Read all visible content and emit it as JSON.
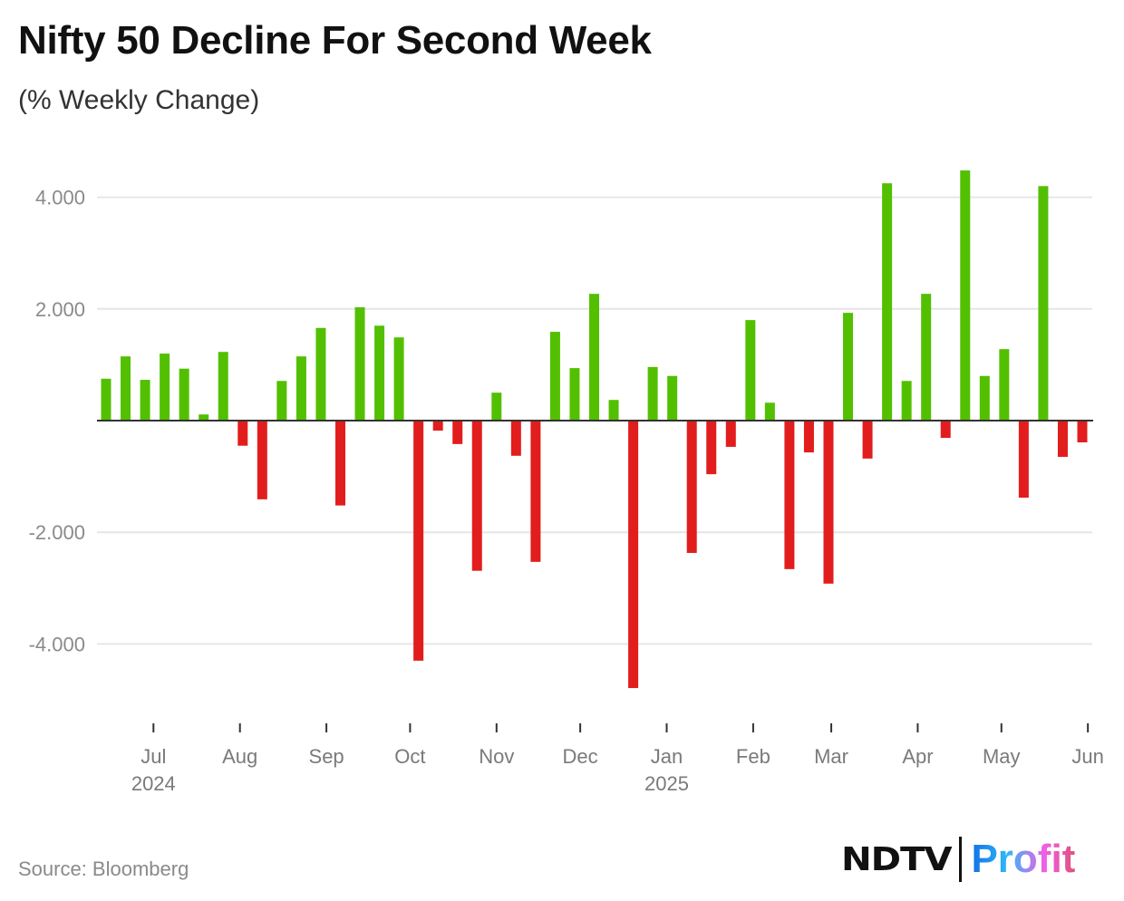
{
  "title": "Nifty 50 Decline For Second Week",
  "subtitle": "(% Weekly Change)",
  "source": "Source: Bloomberg",
  "logo": {
    "brand": "NDTV",
    "product": "Profit"
  },
  "colors": {
    "positive": "#52c000",
    "negative": "#e21d1d",
    "grid": "#e6e6e6",
    "axis": "#333333",
    "tick_label": "#8a8a8a"
  },
  "chart_data": {
    "type": "bar",
    "title": "Nifty 50 Decline For Second Week",
    "subtitle": "(% Weekly Change)",
    "xlabel": "",
    "ylabel": "% Weekly Change",
    "start_week": "2024-06-14",
    "interval_days": 7,
    "values": [
      0.75,
      1.15,
      0.73,
      1.2,
      0.93,
      0.11,
      1.23,
      -0.45,
      -1.41,
      0.71,
      1.15,
      1.66,
      -1.52,
      2.03,
      1.7,
      1.49,
      -4.3,
      -0.18,
      -0.42,
      -2.69,
      0.5,
      -0.63,
      -2.53,
      1.59,
      0.94,
      2.27,
      0.37,
      -4.79,
      0.96,
      0.8,
      -2.37,
      -0.96,
      -0.47,
      1.8,
      0.32,
      -2.66,
      -0.57,
      -2.92,
      1.93,
      -0.68,
      4.25,
      0.71,
      2.27,
      -0.31,
      4.48,
      0.8,
      1.28,
      -1.38,
      4.2,
      -0.65,
      -0.39
    ],
    "ylim": [
      -5,
      5
    ],
    "y_ticks": [
      {
        "value": 4,
        "label": "4.000"
      },
      {
        "value": 2,
        "label": "2.000"
      },
      {
        "value": -2,
        "label": "-2.000"
      },
      {
        "value": -4,
        "label": "-4.000"
      }
    ],
    "x_ticks": [
      {
        "date": "2024-07-01",
        "label": "Jul",
        "sub": "2024"
      },
      {
        "date": "2024-08-01",
        "label": "Aug"
      },
      {
        "date": "2024-09-01",
        "label": "Sep"
      },
      {
        "date": "2024-10-01",
        "label": "Oct"
      },
      {
        "date": "2024-11-01",
        "label": "Nov"
      },
      {
        "date": "2024-12-01",
        "label": "Dec"
      },
      {
        "date": "2025-01-01",
        "label": "Jan",
        "sub": "2025"
      },
      {
        "date": "2025-02-01",
        "label": "Feb"
      },
      {
        "date": "2025-03-01",
        "label": "Mar"
      },
      {
        "date": "2025-04-01",
        "label": "Apr"
      },
      {
        "date": "2025-05-01",
        "label": "May"
      },
      {
        "date": "2025-06-01",
        "label": "Jun"
      }
    ],
    "grid": true,
    "legend": "none"
  }
}
